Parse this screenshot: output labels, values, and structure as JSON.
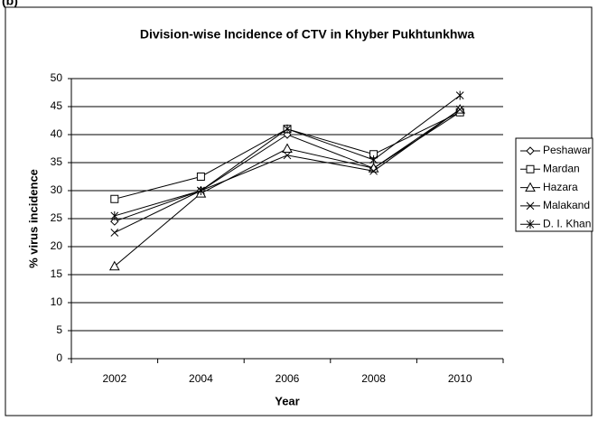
{
  "panel_label": "(b)",
  "chart_data": {
    "type": "line",
    "title": "Division-wise Incidence of CTV in Khyber Pukhtunkhwa",
    "x_label": "Year",
    "y_label": "% virus incidence",
    "categories": [
      "2002",
      "2004",
      "2006",
      "2008",
      "2010"
    ],
    "ylim": [
      0,
      50
    ],
    "yticks": [
      0,
      5,
      10,
      15,
      20,
      25,
      30,
      35,
      40,
      45,
      50
    ],
    "grid": true,
    "legend": "right",
    "series": [
      {
        "name": "Peshawar",
        "color": "#000000",
        "marker": "diamond",
        "values": [
          24.5,
          30,
          40,
          34,
          44
        ]
      },
      {
        "name": "Mardan",
        "color": "#000000",
        "marker": "square",
        "values": [
          28.5,
          32.5,
          41,
          36.5,
          44
        ]
      },
      {
        "name": "Hazara",
        "color": "#000000",
        "marker": "triangle",
        "values": [
          16.5,
          29.5,
          37.5,
          34,
          44.5
        ]
      },
      {
        "name": "Malakand",
        "color": "#000000",
        "marker": "x",
        "values": [
          22.5,
          30,
          36.3,
          33.5,
          44.5
        ]
      },
      {
        "name": "D. I. Khan",
        "color": "#000000",
        "marker": "star",
        "values": [
          25.5,
          30,
          41,
          35.5,
          47
        ]
      }
    ]
  }
}
